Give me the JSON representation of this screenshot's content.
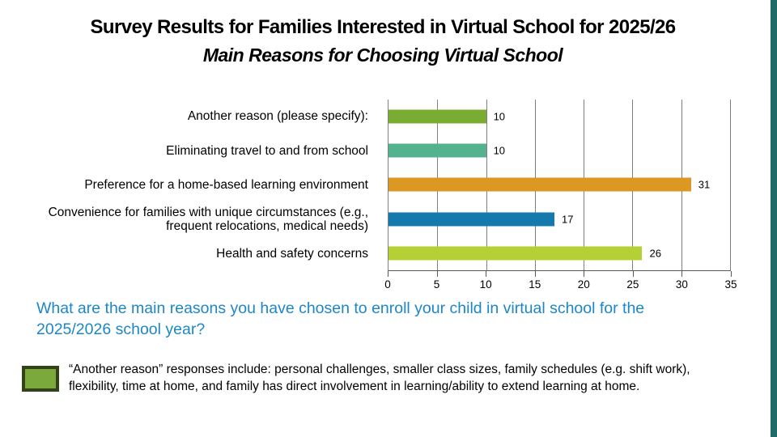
{
  "slide": {
    "title_line1": "Survey Results for Families Interested in Virtual School for 2025/26",
    "title_line2": "Main Reasons for Choosing Virtual School",
    "question": "What are the main reasons you have chosen to enroll your child in virtual school for the 2025/2026 school year?",
    "question_color": "#1B87C9",
    "footnote": "“Another reason” responses include: personal challenges, smaller class sizes, family schedules (e.g. shift work), flexibility, time at home, and family has direct involvement in learning/ability to extend learning at home.",
    "accent_bar_color": "#1F6B66"
  },
  "chart_data": {
    "type": "bar",
    "orientation": "horizontal",
    "categories": [
      "Another reason (please specify):",
      "Eliminating travel to and from school",
      "Preference for a home-based learning environment",
      "Convenience for families with unique circumstances (e.g., frequent relocations, medical needs)",
      "Health and safety concerns"
    ],
    "values": [
      10,
      10,
      31,
      17,
      26
    ],
    "bar_colors": [
      "#7AAB33",
      "#55B28F",
      "#DC9822",
      "#1579AD",
      "#B5D034"
    ],
    "xlim": [
      0,
      35
    ],
    "xticks": [
      0,
      5,
      10,
      15,
      20,
      25,
      30,
      35
    ],
    "grid": "vertical",
    "data_labels": true,
    "legend": {
      "swatch_color": "#7CA93B",
      "swatch_border_color": "#33421A"
    }
  }
}
